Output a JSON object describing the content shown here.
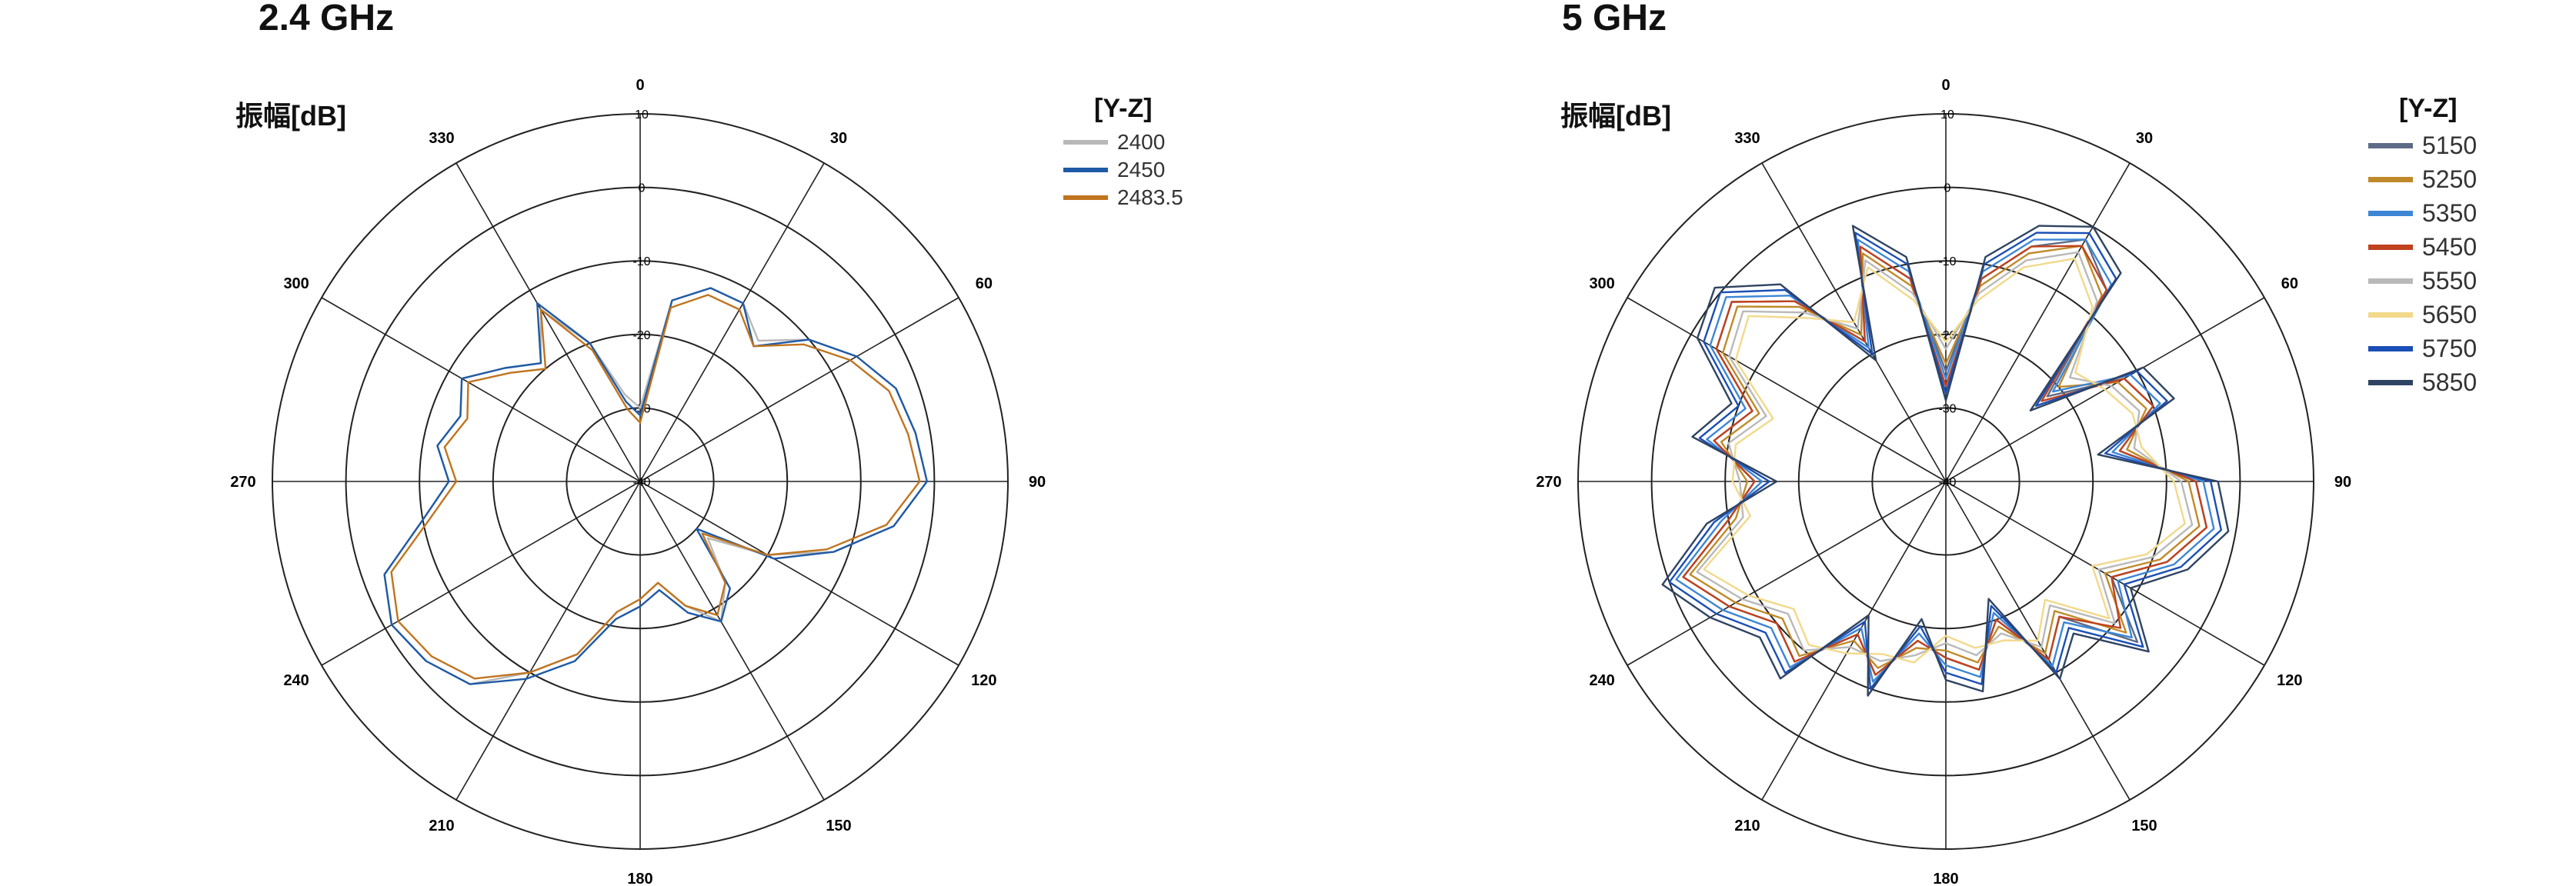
{
  "chart_data": [
    {
      "type": "polar-line",
      "title": "2.4 GHz",
      "ylabel": "振幅[dB]",
      "legend_title": "[Y-Z]",
      "legend_position": "top-right",
      "r_range": [
        -40,
        10
      ],
      "r_ticks": [
        10,
        0,
        -10,
        -20,
        -30,
        -40
      ],
      "angle_ticks": [
        "0",
        "30",
        "60",
        "90",
        "120",
        "150",
        "180",
        "210",
        "240",
        "270",
        "300",
        "330"
      ],
      "series": [
        {
          "name": "2400",
          "color": "#b8b8b8",
          "values": [
            -30,
            -15,
            -12,
            -12,
            -15,
            -10,
            -6,
            -3,
            -2,
            -1,
            -5,
            -12,
            -20,
            -28,
            -22,
            -18,
            -22,
            -26,
            -24,
            -22,
            -15,
            -10,
            -4,
            -2,
            -1,
            -3,
            -10,
            -14,
            -12,
            -14,
            -12,
            -16,
            -19,
            -13,
            -20,
            -28
          ]
        },
        {
          "name": "2450",
          "color": "#1f5aa6",
          "values": [
            -31,
            -15,
            -12,
            -12,
            -16,
            -10,
            -6,
            -3,
            -2,
            -1,
            -5,
            -12,
            -19,
            -30,
            -21,
            -18,
            -21,
            -25,
            -23,
            -21,
            -14,
            -9,
            -4,
            -2,
            -1,
            -3,
            -10,
            -14,
            -12,
            -14,
            -12,
            -16,
            -19,
            -12,
            -20,
            -29
          ]
        },
        {
          "name": "2483.5",
          "color": "#c0741f",
          "values": [
            -32,
            -16,
            -13,
            -13,
            -16,
            -11,
            -7,
            -4,
            -3,
            -2,
            -6,
            -13,
            -20,
            -29,
            -22,
            -19,
            -22,
            -26,
            -24,
            -22,
            -15,
            -10,
            -5,
            -3,
            -2,
            -4,
            -11,
            -15,
            -13,
            -15,
            -13,
            -17,
            -20,
            -13,
            -21,
            -30
          ]
        }
      ]
    },
    {
      "type": "polar-line",
      "title": "5 GHz",
      "ylabel": "振幅[dB]",
      "legend_title": "[Y-Z]",
      "legend_position": "top-right",
      "r_range": [
        -40,
        10
      ],
      "r_ticks": [
        10,
        0,
        -10,
        -20,
        -30,
        -40
      ],
      "angle_ticks": [
        "0",
        "30",
        "60",
        "90",
        "120",
        "150",
        "180",
        "210",
        "240",
        "270",
        "300",
        "330"
      ],
      "series": [
        {
          "name": "5150",
          "color": "#5e6b86",
          "values": [
            -25,
            -12,
            -6,
            -2,
            -6,
            -22,
            -12,
            -10,
            -16,
            -6,
            -4,
            -8,
            -14,
            -6,
            -16,
            -12,
            -20,
            -14,
            -16,
            -18,
            -12,
            -16,
            -8,
            -10,
            -6,
            -2,
            -10,
            -14,
            -8,
            -12,
            -4,
            -2,
            -8,
            -18,
            -6,
            -12
          ]
        },
        {
          "name": "5250",
          "color": "#c08a2a",
          "values": [
            -24,
            -13,
            -7,
            -3,
            -7,
            -20,
            -13,
            -11,
            -15,
            -7,
            -5,
            -9,
            -15,
            -8,
            -17,
            -13,
            -19,
            -15,
            -17,
            -17,
            -13,
            -15,
            -9,
            -11,
            -7,
            -3,
            -11,
            -13,
            -9,
            -13,
            -5,
            -3,
            -9,
            -17,
            -7,
            -13
          ]
        },
        {
          "name": "5350",
          "color": "#3d86d6",
          "values": [
            -26,
            -11,
            -5,
            -2,
            -5,
            -21,
            -11,
            -9,
            -17,
            -5,
            -3,
            -7,
            -13,
            -7,
            -15,
            -11,
            -21,
            -13,
            -15,
            -19,
            -11,
            -17,
            -7,
            -9,
            -5,
            -1,
            -9,
            -15,
            -7,
            -11,
            -3,
            -1,
            -7,
            -19,
            -5,
            -11
          ]
        },
        {
          "name": "5450",
          "color": "#c0421e",
          "values": [
            -27,
            -12,
            -6,
            -3,
            -6,
            -23,
            -12,
            -10,
            -16,
            -6,
            -4,
            -8,
            -14,
            -9,
            -16,
            -12,
            -20,
            -14,
            -16,
            -18,
            -12,
            -16,
            -8,
            -10,
            -6,
            -2,
            -10,
            -14,
            -8,
            -12,
            -4,
            -2,
            -8,
            -18,
            -6,
            -12
          ]
        },
        {
          "name": "5550",
          "color": "#b9b9b9",
          "values": [
            -22,
            -14,
            -8,
            -4,
            -8,
            -18,
            -14,
            -12,
            -14,
            -8,
            -6,
            -10,
            -16,
            -10,
            -18,
            -14,
            -18,
            -16,
            -18,
            -16,
            -14,
            -14,
            -10,
            -12,
            -8,
            -4,
            -12,
            -12,
            -10,
            -14,
            -6,
            -4,
            -10,
            -16,
            -8,
            -14
          ]
        },
        {
          "name": "5650",
          "color": "#f2d98a",
          "values": [
            -21,
            -15,
            -9,
            -5,
            -9,
            -17,
            -15,
            -13,
            -13,
            -9,
            -7,
            -11,
            -17,
            -11,
            -19,
            -15,
            -17,
            -17,
            -19,
            -15,
            -15,
            -13,
            -11,
            -13,
            -9,
            -5,
            -13,
            -11,
            -11,
            -15,
            -7,
            -5,
            -11,
            -15,
            -9,
            -15
          ]
        },
        {
          "name": "5750",
          "color": "#1a4fb5",
          "values": [
            -28,
            -10,
            -4,
            -1,
            -4,
            -24,
            -10,
            -8,
            -18,
            -4,
            -2,
            -6,
            -12,
            -5,
            -14,
            -10,
            -22,
            -12,
            -14,
            -20,
            -10,
            -18,
            -6,
            -8,
            -4,
            0,
            -8,
            -16,
            -6,
            -10,
            -2,
            0,
            -6,
            -20,
            -4,
            -10
          ]
        },
        {
          "name": "5850",
          "color": "#2f4462",
          "values": [
            -29,
            -9,
            -3,
            0,
            -3,
            -25,
            -9,
            -7,
            -19,
            -3,
            -1,
            -5,
            -11,
            -4,
            -13,
            -9,
            -23,
            -11,
            -13,
            -21,
            -9,
            -19,
            -5,
            -7,
            -3,
            1,
            -7,
            -17,
            -5,
            -9,
            -1,
            1,
            -5,
            -21,
            -3,
            -9
          ]
        }
      ]
    }
  ]
}
